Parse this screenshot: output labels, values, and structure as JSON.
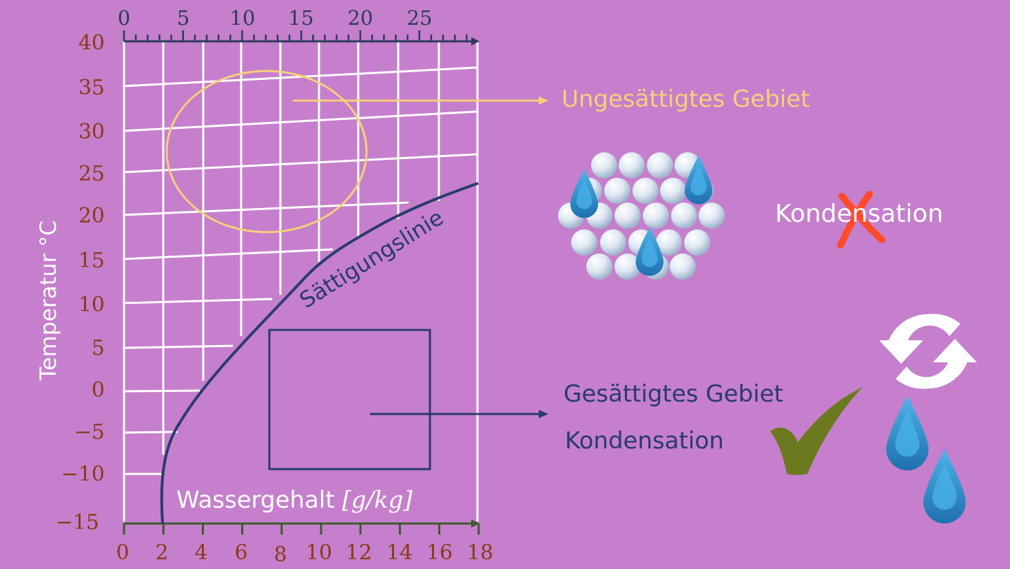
{
  "diagram": {
    "top_axis": {
      "ticks": [
        "0",
        "5",
        "10",
        "15",
        "20",
        "25"
      ]
    },
    "y_axis": {
      "label": "Temperatur °C",
      "ticks": [
        "40",
        "35",
        "30",
        "25",
        "20",
        "15",
        "10",
        "5",
        "0",
        "−5",
        "−10",
        "−15"
      ]
    },
    "x_axis": {
      "label": "Wassergehalt",
      "unit": "[g/kg]",
      "ticks": [
        "0",
        "2",
        "4",
        "6",
        "8",
        "10",
        "12",
        "14",
        "16",
        "18"
      ]
    },
    "curve_label": "Sättigungslinie",
    "unsaturated": {
      "label": "Ungesättigtes Gebiet",
      "kondensation": "Kondensation",
      "kondensation_possible": false
    },
    "saturated": {
      "label": "Gesättigtes Gebiet",
      "kondensation": "Kondensation",
      "kondensation_possible": true
    },
    "colors": {
      "background": "#c57fcc",
      "grid": "#ffffff",
      "axis": "#2f3a5c",
      "tick_labels": "#8a3a1a",
      "unsaturated": "#f7d07a",
      "saturated": "#2a3a6e",
      "cross": "#ff4b2b",
      "check": "#6b7a1e",
      "drop": "#2b88c8"
    },
    "icons": [
      "molecule-cluster-icon",
      "water-drop-icon",
      "cross-icon",
      "checkmark-icon",
      "refresh-cycle-icon"
    ]
  }
}
